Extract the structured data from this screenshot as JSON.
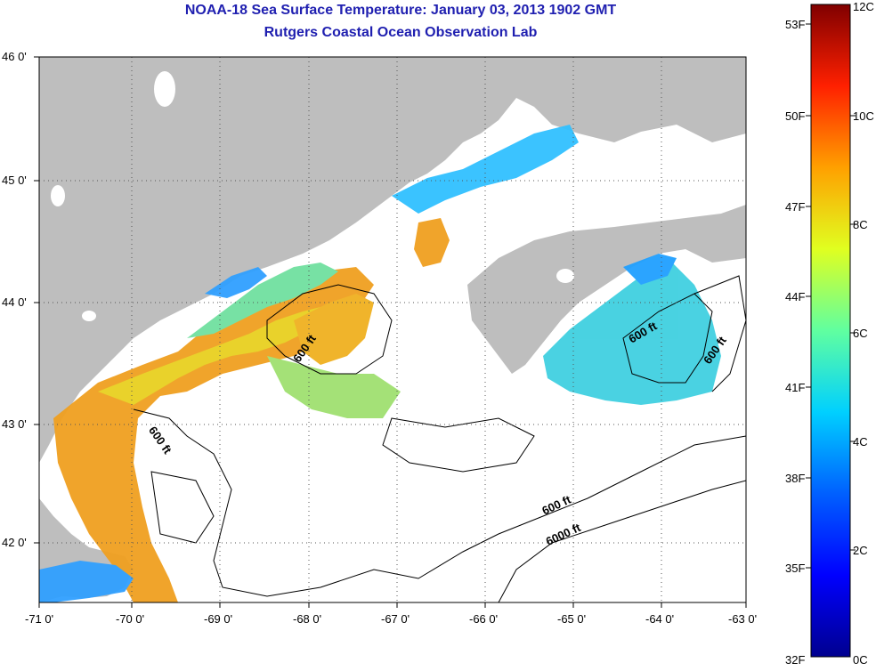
{
  "title": "NOAA-18 Sea Surface Temperature:  January 03, 2013 1902 GMT",
  "subtitle": "Rutgers Coastal Ocean Observation Lab",
  "lon_labels": [
    "-71 0'",
    "-70 0'",
    "-69 0'",
    "-68 0'",
    "-67 0'",
    "-66 0'",
    "-65 0'",
    "-64 0'",
    "-63 0'"
  ],
  "lat_labels": [
    "46 0'",
    "45 0'",
    "44 0'",
    "43 0'",
    "42 0'"
  ],
  "contour_labels": [
    "600 ft",
    "600 ft",
    "600 ft",
    "600 ft",
    "600 ft",
    "6000 ft"
  ],
  "colorbar": {
    "fahrenheit": [
      "53F",
      "50F",
      "47F",
      "44F",
      "41F",
      "38F",
      "35F",
      "32F"
    ],
    "celsius": [
      "12C",
      "10C",
      "8C",
      "6C",
      "4C",
      "2C",
      "0C"
    ],
    "colors": [
      "#00008f",
      "#0000ff",
      "#0080ff",
      "#00ffff",
      "#80ff80",
      "#ffff00",
      "#ff8000",
      "#ff0000",
      "#800000"
    ]
  },
  "colors": {
    "land": "#bebebe",
    "ocean": "#ffffff",
    "title": "#1f1fb0",
    "grid": "#555555"
  }
}
